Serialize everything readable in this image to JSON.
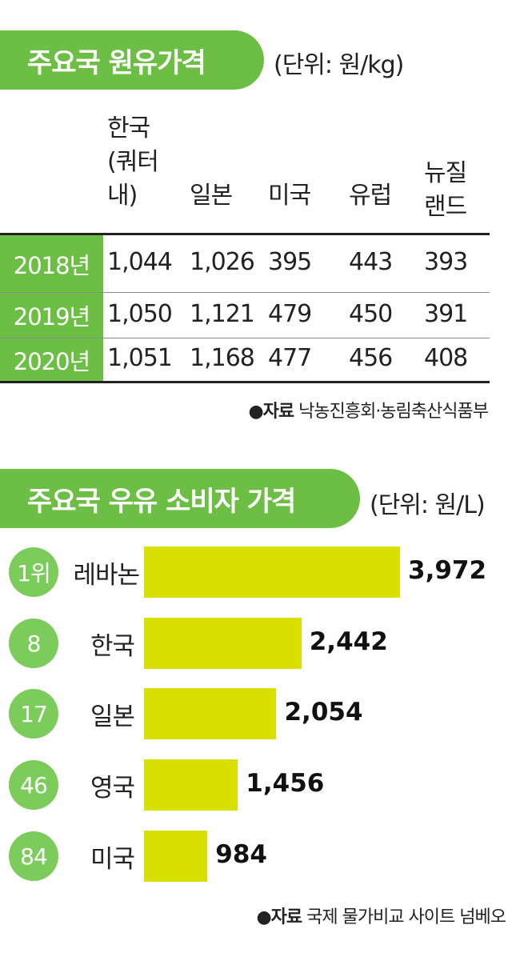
{
  "section1": {
    "title": "주요국 원유가격",
    "unit": "(단위: 원/kg)",
    "header_col0_line1": "한국",
    "header_col0_line2": "(쿼터",
    "header_col0_line3": "내)",
    "header_col1": "일본",
    "header_col2": "미국",
    "header_col3": "유럽",
    "header_col4_line1": "뉴질",
    "header_col4_line2": "랜드",
    "source_bold": "●자료",
    "source_text": " 낙농진흥회·농림축산식품부"
  },
  "section2": {
    "title": "주요국 우유 소비자 가격",
    "unit": "(단위: 원/L)",
    "source_bold": "●자료",
    "source_text": " 국제 물가비교 사이트 넘베오"
  },
  "chart_data": [
    {
      "type": "table",
      "title": "주요국 원유가격",
      "unit": "(단위: 원/kg)",
      "columns": [
        "한국 (쿼터 내)",
        "일본",
        "미국",
        "유럽",
        "뉴질랜드"
      ],
      "rows": [
        {
          "year": "2018년",
          "values": [
            "1,044",
            "1,026",
            "395",
            "443",
            "393"
          ]
        },
        {
          "year": "2019년",
          "values": [
            "1,050",
            "1,121",
            "479",
            "450",
            "391"
          ]
        },
        {
          "year": "2020년",
          "values": [
            "1,051",
            "1,168",
            "477",
            "456",
            "408"
          ]
        }
      ]
    },
    {
      "type": "bar",
      "title": "주요국 우유 소비자 가격",
      "unit": "(단위: 원/L)",
      "orientation": "horizontal",
      "bar_color": "#d9df00",
      "rank_color": "#7ccc5c",
      "categories": [
        "레바논",
        "한국",
        "일본",
        "영국",
        "미국"
      ],
      "ranks": [
        "1위",
        "8",
        "17",
        "46",
        "84"
      ],
      "values": [
        3972,
        2442,
        2054,
        1456,
        984
      ],
      "labels": [
        "3,972",
        "2,442",
        "2,054",
        "1,456",
        "984"
      ]
    }
  ],
  "colors": {
    "accent_green": "#6cbe45",
    "bar_yellow": "#d9df00"
  }
}
